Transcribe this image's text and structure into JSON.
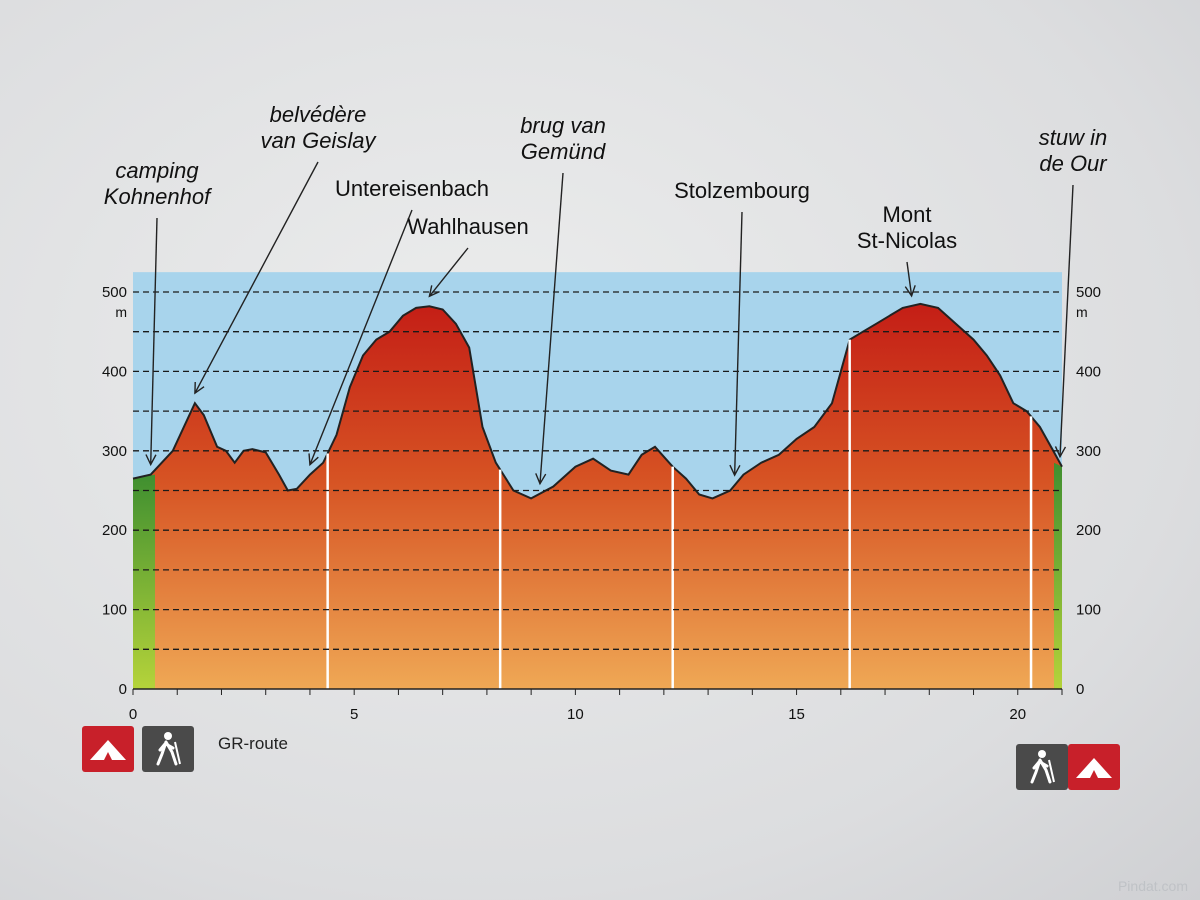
{
  "chart_data": {
    "type": "area",
    "title": "",
    "xlabel": "",
    "ylabel": "",
    "y_unit": "m",
    "xlim": [
      0,
      21
    ],
    "ylim": [
      0,
      500
    ],
    "x_ticks": [
      0,
      5,
      10,
      15,
      20
    ],
    "y_ticks": [
      0,
      100,
      200,
      300,
      400,
      500
    ],
    "grid": "dashed horizontal every 50 m",
    "series": [
      {
        "x": [
          0,
          0.4,
          0.9,
          1.4,
          1.6,
          1.9,
          2.1,
          2.3,
          2.5,
          2.7,
          3.0,
          3.3,
          3.5,
          3.7,
          4.0,
          4.3,
          4.6,
          4.9,
          5.2,
          5.5,
          5.8,
          6.1,
          6.4,
          6.7,
          7.0,
          7.3,
          7.6,
          7.9,
          8.2,
          8.6,
          9.0,
          9.5,
          10.0,
          10.4,
          10.8,
          11.2,
          11.5,
          11.8,
          12.2,
          12.5,
          12.8,
          13.1,
          13.5,
          13.8,
          14.2,
          14.6,
          15.0,
          15.4,
          15.8,
          16.2,
          16.5,
          16.8,
          17.1,
          17.4,
          17.8,
          18.2,
          18.6,
          19.0,
          19.3,
          19.6,
          19.9,
          20.2,
          20.5,
          20.8,
          21.0
        ],
        "values": [
          265,
          270,
          300,
          360,
          345,
          305,
          300,
          285,
          300,
          302,
          298,
          270,
          250,
          252,
          270,
          285,
          320,
          380,
          420,
          440,
          450,
          470,
          480,
          482,
          478,
          460,
          430,
          330,
          285,
          250,
          240,
          255,
          280,
          290,
          275,
          270,
          295,
          305,
          280,
          265,
          245,
          240,
          250,
          270,
          285,
          295,
          315,
          330,
          360,
          440,
          450,
          460,
          470,
          480,
          485,
          480,
          460,
          440,
          420,
          395,
          360,
          350,
          330,
          300,
          280
        ]
      }
    ],
    "annotations": [
      {
        "text": "camping\nKohnenhof",
        "x": 0.4,
        "italic": true
      },
      {
        "text": "belvédère\nvan Geislay",
        "x": 1.4,
        "italic": true
      },
      {
        "text": "Untereisenbach",
        "x": 4.0,
        "italic": false
      },
      {
        "text": "Wahlhausen",
        "x": 6.7,
        "italic": false
      },
      {
        "text": "brug van\nGemünd",
        "x": 9.2,
        "italic": true
      },
      {
        "text": "Stolzembourg",
        "x": 13.6,
        "italic": false
      },
      {
        "text": "Mont\nSt-Nicolas",
        "x": 17.6,
        "italic": false
      },
      {
        "text": "stuw in\nde Our",
        "x": 21.0,
        "italic": true
      }
    ],
    "section_dividers_km": [
      4.4,
      8.3,
      12.2,
      16.2,
      20.3
    ],
    "colors": {
      "sky": "#a8d4ec",
      "terrain_top": "#cc2a1c",
      "terrain_bottom": "#eda052",
      "start_end_band": "#56a83a",
      "outline": "#222222"
    }
  },
  "legend": {
    "label": "GR-route",
    "camp_icon": "tent-icon",
    "walker_icon": "hiker-icon"
  },
  "watermark": "Pindat.com"
}
